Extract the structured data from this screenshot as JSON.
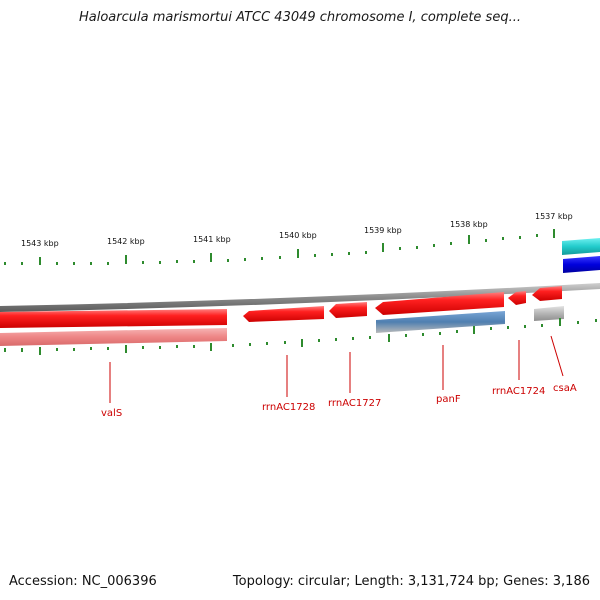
{
  "title": "Haloarcula marismortui ATCC 43049 chromosome I, complete seq...",
  "footer": {
    "accession": "Accession: NC_006396",
    "summary": "Topology: circular; Length: 3,131,724 bp; Genes: 3,186"
  },
  "ruler_labels": [
    "1543 kbp",
    "1542 kbp",
    "1541 kbp",
    "1540 kbp",
    "1539 kbp",
    "1538 kbp",
    "1537 kbp"
  ],
  "gene_labels": [
    "valS",
    "rrnAC1728",
    "rrnAC1727",
    "panF",
    "rrnAC1724",
    "csaA"
  ],
  "colors": {
    "background": "#ffffff",
    "backbone": "#8a8a8a",
    "tick": "#2e8b2e",
    "cds_red": "#e00000",
    "cds_light_red": "#ee8a8a",
    "steel_blue": "#4f7fb0",
    "grey_feature": "#b5b5b5",
    "cyan": "#22cccc",
    "blue": "#0000dd",
    "label_red": "#cc0000"
  }
}
